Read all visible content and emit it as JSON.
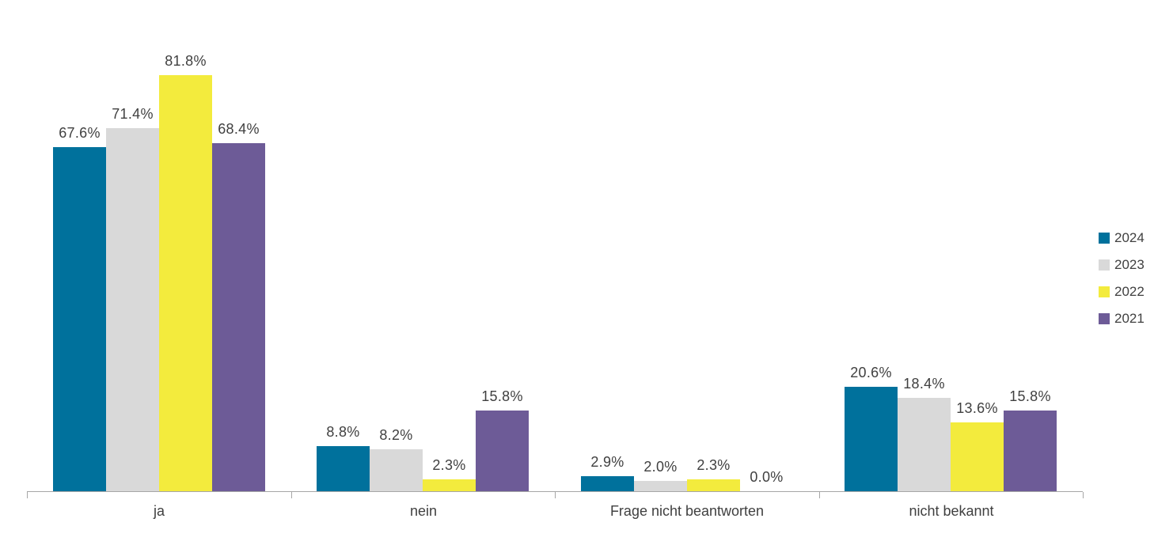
{
  "chart_data": {
    "type": "bar",
    "title": "",
    "xlabel": "",
    "ylabel": "",
    "value_suffix": "%",
    "ylim": [
      0,
      90
    ],
    "grid": false,
    "legend_position": "right",
    "categories": [
      "ja",
      "nein",
      "Frage nicht beantworten",
      "nicht bekannt"
    ],
    "series": [
      {
        "name": "2024",
        "color": "#00719c",
        "values": [
          67.6,
          8.8,
          2.9,
          20.6
        ]
      },
      {
        "name": "2023",
        "color": "#d9d9d9",
        "values": [
          71.4,
          8.2,
          2.0,
          18.4
        ]
      },
      {
        "name": "2022",
        "color": "#f3eb3d",
        "values": [
          81.8,
          2.3,
          2.3,
          13.6
        ]
      },
      {
        "name": "2021",
        "color": "#6d5b97",
        "values": [
          68.4,
          15.8,
          0.0,
          15.8
        ]
      }
    ],
    "data_labels": [
      [
        "67.6%",
        "8.8%",
        "2.9%",
        "20.6%"
      ],
      [
        "71.4%",
        "8.2%",
        "2.0%",
        "18.4%"
      ],
      [
        "81.8%",
        "2.3%",
        "2.3%",
        "13.6%"
      ],
      [
        "68.4%",
        "15.8%",
        "0.0%",
        "15.8%"
      ]
    ],
    "axis_color": "#a6a6a6",
    "label_color": "#404040"
  }
}
